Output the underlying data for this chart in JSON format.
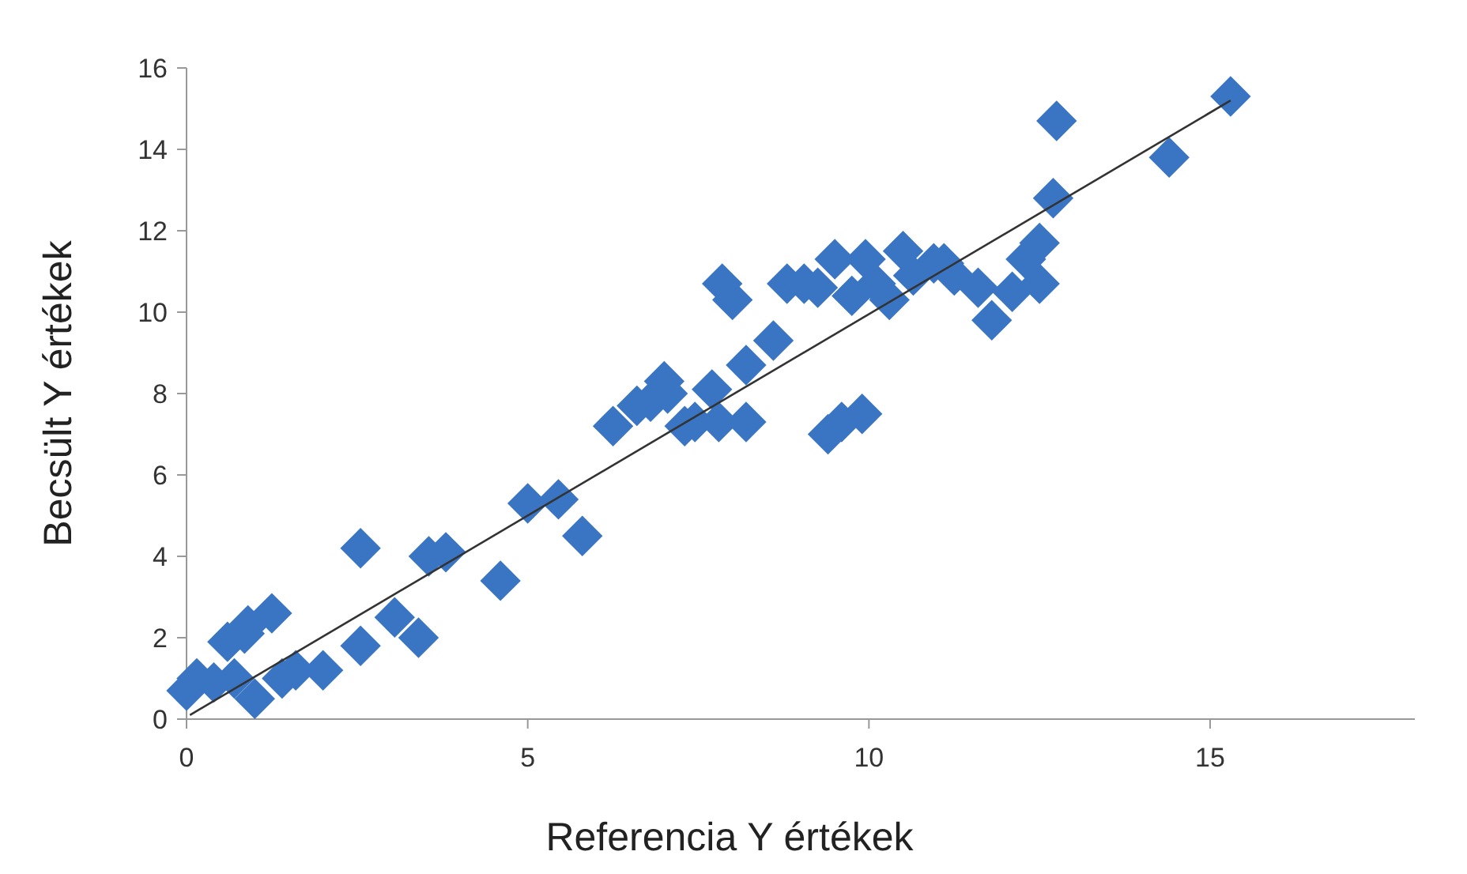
{
  "chart_data": {
    "type": "scatter",
    "xlabel": "Referencia Y értékek",
    "ylabel": "Becsült Y értékek",
    "xlim": [
      0,
      18
    ],
    "ylim": [
      0,
      16
    ],
    "xticks": [
      0,
      5,
      10,
      15
    ],
    "yticks": [
      0,
      2,
      4,
      6,
      8,
      10,
      12,
      14,
      16
    ],
    "grid": false,
    "marker": "diamond",
    "series": [
      {
        "color": "#3a75c4",
        "x": [
          0,
          0.15,
          0.4,
          0.6,
          0.85,
          0.9,
          0.7,
          1.0,
          1.25,
          1.4,
          1.6,
          2.0,
          2.55,
          2.55,
          3.05,
          3.4,
          3.55,
          3.8,
          4.6,
          5.0,
          5.45,
          5.8,
          6.25,
          6.6,
          6.8,
          7.0,
          7.05,
          7.3,
          7.45,
          7.7,
          7.8,
          7.85,
          8.0,
          8.2,
          8.2,
          8.6,
          8.8,
          9.05,
          9.25,
          9.4,
          9.6,
          9.9,
          9.5,
          9.75,
          9.95,
          10.1,
          10.3,
          10.5,
          10.65,
          10.95,
          11.1,
          11.25,
          11.6,
          11.8,
          12.1,
          12.3,
          12.5,
          12.5,
          12.7,
          12.75,
          14.4,
          15.3
        ],
        "values": [
          0.7,
          1.0,
          0.9,
          1.9,
          2.1,
          2.3,
          1.0,
          0.5,
          2.6,
          1.0,
          1.2,
          1.2,
          4.2,
          1.8,
          2.5,
          2.0,
          4.0,
          4.1,
          3.4,
          5.3,
          5.4,
          4.5,
          7.2,
          7.7,
          7.8,
          8.3,
          8.0,
          7.2,
          7.3,
          8.1,
          7.3,
          10.7,
          10.3,
          7.3,
          8.7,
          9.3,
          10.7,
          10.7,
          10.6,
          7.0,
          7.3,
          7.5,
          11.3,
          10.4,
          11.3,
          10.7,
          10.3,
          11.5,
          10.9,
          11.2,
          11.2,
          10.9,
          10.6,
          9.8,
          10.5,
          11.3,
          11.7,
          10.7,
          12.8,
          14.7,
          13.8,
          15.3
        ]
      },
      {
        "type": "line",
        "color": "#333333",
        "marker": "none",
        "x": [
          0.05,
          15.3
        ],
        "values": [
          0.1,
          15.2
        ]
      }
    ]
  }
}
